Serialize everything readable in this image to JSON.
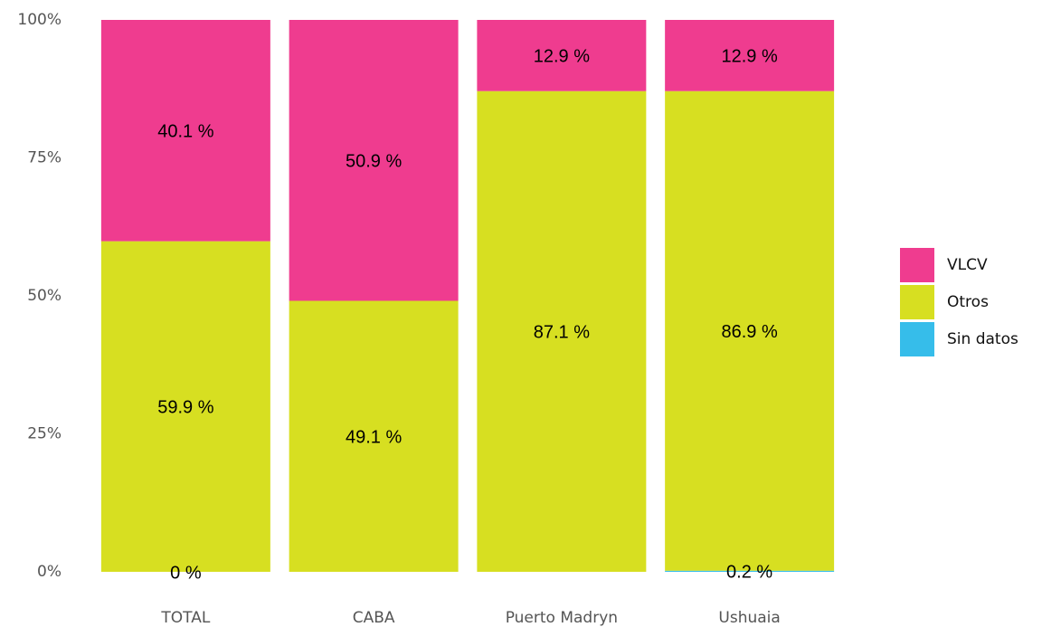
{
  "chart_data": {
    "type": "stacked_bar",
    "categories": [
      "TOTAL",
      "CABA",
      "Puerto Madryn",
      "Ushuaia"
    ],
    "series": [
      {
        "name": "VLCV",
        "color": "#ef3c8f",
        "values": [
          40.1,
          50.9,
          12.9,
          12.9
        ],
        "value_labels": [
          "40.1 %",
          "50.9 %",
          "12.9 %",
          "12.9 %"
        ]
      },
      {
        "name": "Otros",
        "color": "#d7df21",
        "values": [
          59.9,
          49.1,
          87.1,
          86.9
        ],
        "value_labels": [
          "59.9 %",
          "49.1 %",
          "87.1 %",
          "86.9 %"
        ]
      },
      {
        "name": "Sin datos",
        "color": "#36bdea",
        "values": [
          0,
          null,
          null,
          0.2
        ],
        "value_labels": [
          "0 %",
          null,
          null,
          "0.2 %"
        ]
      }
    ],
    "ylim": [
      0,
      100
    ],
    "yticks": [
      {
        "value": 0,
        "label": "0%"
      },
      {
        "value": 25,
        "label": "25%"
      },
      {
        "value": 50,
        "label": "50%"
      },
      {
        "value": 75,
        "label": "75%"
      },
      {
        "value": 100,
        "label": "100%"
      }
    ],
    "grid": false,
    "legend": "right"
  }
}
